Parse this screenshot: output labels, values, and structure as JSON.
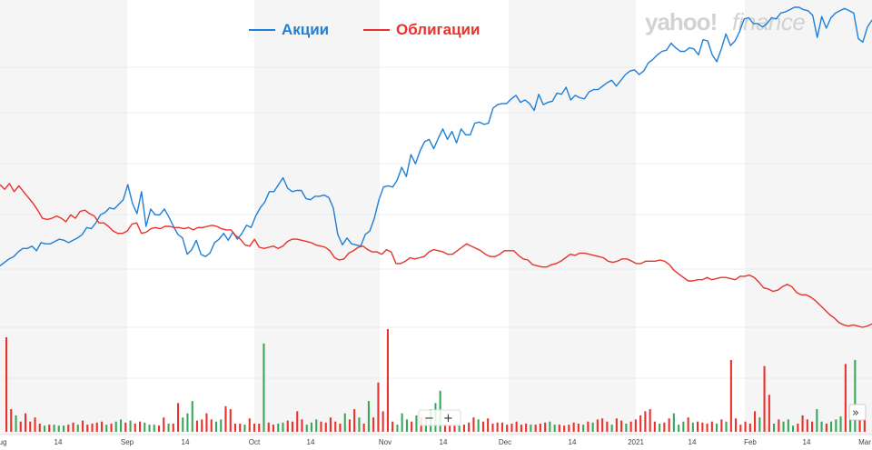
{
  "chart_data": {
    "type": "line",
    "legend": [
      {
        "label": "Акции",
        "color": "#1f7fd6"
      },
      {
        "label": "Облигации",
        "color": "#e8322b"
      }
    ],
    "watermark": {
      "brand": "yahoo!",
      "product": "finance"
    },
    "x_ticks": [
      "ug",
      "14",
      "Sep",
      "14",
      "Oct",
      "14",
      "Nov",
      "14",
      "Dec",
      "14",
      "2021",
      "14",
      "Feb",
      "14",
      "Mar"
    ],
    "series": [
      {
        "name": "Акции",
        "color": "#1f7fd6",
        "values": [
          30,
          33,
          36,
          38,
          42,
          45,
          45,
          47,
          43,
          50,
          49,
          49,
          51,
          53,
          52,
          50,
          52,
          54,
          57,
          63,
          62,
          67,
          74,
          76,
          80,
          79,
          83,
          87,
          100,
          84,
          75,
          94,
          64,
          79,
          74,
          74,
          79,
          72,
          64,
          57,
          54,
          40,
          44,
          52,
          40,
          38,
          41,
          50,
          53,
          58,
          52,
          59,
          53,
          58,
          65,
          63,
          73,
          80,
          85,
          94,
          94,
          100,
          106,
          97,
          94,
          95,
          95,
          88,
          87,
          90,
          90,
          91,
          89,
          80,
          57,
          48,
          54,
          49,
          48,
          47,
          57,
          60,
          71,
          87,
          98,
          99,
          98,
          104,
          115,
          107,
          126,
          118,
          129,
          137,
          139,
          131,
          140,
          148,
          139,
          146,
          136,
          148,
          143,
          143,
          153,
          154,
          152,
          153,
          166,
          169,
          170,
          170,
          174,
          177,
          171,
          173,
          170,
          164,
          178,
          169,
          171,
          172,
          179,
          178,
          184,
          173,
          177,
          175,
          174,
          180,
          182,
          182,
          185,
          188,
          190,
          185,
          190,
          195,
          198,
          199,
          195,
          198,
          205,
          208,
          212,
          215,
          216,
          222,
          218,
          215,
          215,
          218,
          217,
          212,
          225,
          224,
          212,
          206,
          217,
          230,
          220,
          224,
          232,
          243,
          244,
          239,
          239,
          236,
          239,
          244,
          243,
          248,
          249,
          251,
          253,
          253,
          251,
          250,
          246,
          227,
          245,
          235,
          244,
          248,
          250,
          252,
          250,
          248,
          226,
          223,
          236,
          242
        ]
      },
      {
        "name": "Облигации",
        "color": "#e8322b",
        "values": [
          100,
          96,
          101,
          94,
          99,
          94,
          89,
          84,
          78,
          71,
          70,
          71,
          73,
          71,
          68,
          74,
          71,
          77,
          78,
          75,
          73,
          67,
          67,
          64,
          60,
          58,
          58,
          60,
          66,
          67,
          58,
          59,
          62,
          63,
          62,
          64,
          64,
          63,
          63,
          62,
          63,
          61,
          63,
          63,
          64,
          65,
          64,
          62,
          61,
          61,
          56,
          53,
          48,
          47,
          53,
          46,
          45,
          46,
          47,
          45,
          47,
          51,
          53,
          53,
          52,
          51,
          50,
          48,
          47,
          46,
          43,
          37,
          35,
          36,
          41,
          43,
          46,
          47,
          44,
          42,
          42,
          40,
          44,
          42,
          32,
          32,
          34,
          37,
          36,
          37,
          38,
          42,
          44,
          43,
          42,
          40,
          40,
          43,
          46,
          49,
          47,
          45,
          43,
          40,
          38,
          38,
          40,
          43,
          43,
          43,
          39,
          36,
          35,
          31,
          30,
          29,
          29,
          31,
          32,
          34,
          37,
          40,
          39,
          41,
          41,
          40,
          39,
          38,
          37,
          34,
          33,
          34,
          36,
          36,
          34,
          32,
          32,
          34,
          34,
          34,
          35,
          34,
          31,
          26,
          23,
          20,
          17,
          17,
          18,
          18,
          20,
          18,
          19,
          20,
          20,
          19,
          18,
          21,
          21,
          22,
          20,
          16,
          11,
          10,
          8,
          9,
          12,
          14,
          12,
          7,
          5,
          5,
          3,
          0,
          -4,
          -8,
          -12,
          -15,
          -19,
          -21,
          -22,
          -21,
          -22,
          -23,
          -22,
          -20
        ]
      }
    ],
    "volume": [
      {
        "value": 0.92,
        "color": "#e8322b"
      },
      {
        "value": 0.22,
        "color": "#e8322b"
      },
      {
        "value": 0.16,
        "color": "#3aa65c"
      },
      {
        "value": 0.1,
        "color": "#e8322b"
      },
      {
        "value": 0.18,
        "color": "#e8322b"
      },
      {
        "value": 0.1,
        "color": "#e8322b"
      },
      {
        "value": 0.14,
        "color": "#e8322b"
      },
      {
        "value": 0.08,
        "color": "#e8322b"
      },
      {
        "value": 0.06,
        "color": "#3aa65c"
      },
      {
        "value": 0.07,
        "color": "#e8322b"
      },
      {
        "value": 0.07,
        "color": "#3aa65c"
      },
      {
        "value": 0.06,
        "color": "#3aa65c"
      },
      {
        "value": 0.06,
        "color": "#3aa65c"
      },
      {
        "value": 0.07,
        "color": "#e8322b"
      },
      {
        "value": 0.09,
        "color": "#e8322b"
      },
      {
        "value": 0.07,
        "color": "#3aa65c"
      },
      {
        "value": 0.11,
        "color": "#e8322b"
      },
      {
        "value": 0.07,
        "color": "#e8322b"
      },
      {
        "value": 0.08,
        "color": "#e8322b"
      },
      {
        "value": 0.09,
        "color": "#e8322b"
      },
      {
        "value": 0.1,
        "color": "#e8322b"
      },
      {
        "value": 0.07,
        "color": "#3aa65c"
      },
      {
        "value": 0.08,
        "color": "#e8322b"
      },
      {
        "value": 0.1,
        "color": "#3aa65c"
      },
      {
        "value": 0.12,
        "color": "#3aa65c"
      },
      {
        "value": 0.09,
        "color": "#e8322b"
      },
      {
        "value": 0.11,
        "color": "#3aa65c"
      },
      {
        "value": 0.08,
        "color": "#e8322b"
      },
      {
        "value": 0.1,
        "color": "#e8322b"
      },
      {
        "value": 0.09,
        "color": "#3aa65c"
      },
      {
        "value": 0.07,
        "color": "#3aa65c"
      },
      {
        "value": 0.07,
        "color": "#3aa65c"
      },
      {
        "value": 0.06,
        "color": "#e8322b"
      },
      {
        "value": 0.14,
        "color": "#e8322b"
      },
      {
        "value": 0.08,
        "color": "#3aa65c"
      },
      {
        "value": 0.08,
        "color": "#e8322b"
      },
      {
        "value": 0.28,
        "color": "#e8322b"
      },
      {
        "value": 0.14,
        "color": "#3aa65c"
      },
      {
        "value": 0.18,
        "color": "#3aa65c"
      },
      {
        "value": 0.3,
        "color": "#3aa65c"
      },
      {
        "value": 0.11,
        "color": "#e8322b"
      },
      {
        "value": 0.12,
        "color": "#e8322b"
      },
      {
        "value": 0.18,
        "color": "#e8322b"
      },
      {
        "value": 0.12,
        "color": "#e8322b"
      },
      {
        "value": 0.1,
        "color": "#3aa65c"
      },
      {
        "value": 0.12,
        "color": "#3aa65c"
      },
      {
        "value": 0.25,
        "color": "#e8322b"
      },
      {
        "value": 0.22,
        "color": "#e8322b"
      },
      {
        "value": 0.08,
        "color": "#e8322b"
      },
      {
        "value": 0.08,
        "color": "#e8322b"
      },
      {
        "value": 0.07,
        "color": "#3aa65c"
      },
      {
        "value": 0.13,
        "color": "#e8322b"
      },
      {
        "value": 0.08,
        "color": "#e8322b"
      },
      {
        "value": 0.08,
        "color": "#e8322b"
      },
      {
        "value": 0.86,
        "color": "#3aa65c"
      },
      {
        "value": 0.09,
        "color": "#e8322b"
      },
      {
        "value": 0.07,
        "color": "#e8322b"
      },
      {
        "value": 0.08,
        "color": "#3aa65c"
      },
      {
        "value": 0.09,
        "color": "#3aa65c"
      },
      {
        "value": 0.11,
        "color": "#e8322b"
      },
      {
        "value": 0.1,
        "color": "#e8322b"
      },
      {
        "value": 0.2,
        "color": "#e8322b"
      },
      {
        "value": 0.12,
        "color": "#e8322b"
      },
      {
        "value": 0.07,
        "color": "#3aa65c"
      },
      {
        "value": 0.09,
        "color": "#3aa65c"
      },
      {
        "value": 0.12,
        "color": "#3aa65c"
      },
      {
        "value": 0.1,
        "color": "#e8322b"
      },
      {
        "value": 0.09,
        "color": "#e8322b"
      },
      {
        "value": 0.14,
        "color": "#e8322b"
      },
      {
        "value": 0.1,
        "color": "#e8322b"
      },
      {
        "value": 0.08,
        "color": "#e8322b"
      },
      {
        "value": 0.18,
        "color": "#3aa65c"
      },
      {
        "value": 0.12,
        "color": "#e8322b"
      },
      {
        "value": 0.22,
        "color": "#e8322b"
      },
      {
        "value": 0.14,
        "color": "#3aa65c"
      },
      {
        "value": 0.08,
        "color": "#e8322b"
      },
      {
        "value": 0.3,
        "color": "#3aa65c"
      },
      {
        "value": 0.14,
        "color": "#e8322b"
      },
      {
        "value": 0.48,
        "color": "#e8322b"
      },
      {
        "value": 0.2,
        "color": "#e8322b"
      },
      {
        "value": 1.0,
        "color": "#e8322b"
      },
      {
        "value": 0.1,
        "color": "#e8322b"
      },
      {
        "value": 0.07,
        "color": "#3aa65c"
      },
      {
        "value": 0.18,
        "color": "#3aa65c"
      },
      {
        "value": 0.12,
        "color": "#3aa65c"
      },
      {
        "value": 0.1,
        "color": "#e8322b"
      },
      {
        "value": 0.16,
        "color": "#3aa65c"
      },
      {
        "value": 0.14,
        "color": "#e8322b"
      },
      {
        "value": 0.13,
        "color": "#3aa65c"
      },
      {
        "value": 0.22,
        "color": "#3aa65c"
      },
      {
        "value": 0.28,
        "color": "#3aa65c"
      },
      {
        "value": 0.4,
        "color": "#3aa65c"
      },
      {
        "value": 0.08,
        "color": "#e8322b"
      },
      {
        "value": 0.07,
        "color": "#e8322b"
      },
      {
        "value": 0.07,
        "color": "#e8322b"
      },
      {
        "value": 0.06,
        "color": "#3aa65c"
      },
      {
        "value": 0.07,
        "color": "#e8322b"
      },
      {
        "value": 0.09,
        "color": "#e8322b"
      },
      {
        "value": 0.14,
        "color": "#e8322b"
      },
      {
        "value": 0.12,
        "color": "#3aa65c"
      },
      {
        "value": 0.1,
        "color": "#e8322b"
      },
      {
        "value": 0.13,
        "color": "#e8322b"
      },
      {
        "value": 0.08,
        "color": "#e8322b"
      },
      {
        "value": 0.09,
        "color": "#e8322b"
      },
      {
        "value": 0.09,
        "color": "#e8322b"
      },
      {
        "value": 0.07,
        "color": "#e8322b"
      },
      {
        "value": 0.08,
        "color": "#e8322b"
      },
      {
        "value": 0.1,
        "color": "#e8322b"
      },
      {
        "value": 0.07,
        "color": "#e8322b"
      },
      {
        "value": 0.08,
        "color": "#e8322b"
      },
      {
        "value": 0.07,
        "color": "#3aa65c"
      },
      {
        "value": 0.07,
        "color": "#e8322b"
      },
      {
        "value": 0.08,
        "color": "#e8322b"
      },
      {
        "value": 0.09,
        "color": "#e8322b"
      },
      {
        "value": 0.1,
        "color": "#3aa65c"
      },
      {
        "value": 0.07,
        "color": "#3aa65c"
      },
      {
        "value": 0.07,
        "color": "#e8322b"
      },
      {
        "value": 0.06,
        "color": "#e8322b"
      },
      {
        "value": 0.07,
        "color": "#e8322b"
      },
      {
        "value": 0.09,
        "color": "#e8322b"
      },
      {
        "value": 0.08,
        "color": "#e8322b"
      },
      {
        "value": 0.07,
        "color": "#3aa65c"
      },
      {
        "value": 0.1,
        "color": "#e8322b"
      },
      {
        "value": 0.09,
        "color": "#3aa65c"
      },
      {
        "value": 0.12,
        "color": "#e8322b"
      },
      {
        "value": 0.13,
        "color": "#e8322b"
      },
      {
        "value": 0.1,
        "color": "#e8322b"
      },
      {
        "value": 0.07,
        "color": "#3aa65c"
      },
      {
        "value": 0.13,
        "color": "#e8322b"
      },
      {
        "value": 0.11,
        "color": "#e8322b"
      },
      {
        "value": 0.08,
        "color": "#3aa65c"
      },
      {
        "value": 0.1,
        "color": "#e8322b"
      },
      {
        "value": 0.12,
        "color": "#e8322b"
      },
      {
        "value": 0.16,
        "color": "#e8322b"
      },
      {
        "value": 0.2,
        "color": "#e8322b"
      },
      {
        "value": 0.22,
        "color": "#e8322b"
      },
      {
        "value": 0.1,
        "color": "#e8322b"
      },
      {
        "value": 0.08,
        "color": "#3aa65c"
      },
      {
        "value": 0.09,
        "color": "#e8322b"
      },
      {
        "value": 0.13,
        "color": "#e8322b"
      },
      {
        "value": 0.18,
        "color": "#3aa65c"
      },
      {
        "value": 0.07,
        "color": "#3aa65c"
      },
      {
        "value": 0.1,
        "color": "#3aa65c"
      },
      {
        "value": 0.14,
        "color": "#e8322b"
      },
      {
        "value": 0.09,
        "color": "#3aa65c"
      },
      {
        "value": 0.1,
        "color": "#e8322b"
      },
      {
        "value": 0.09,
        "color": "#e8322b"
      },
      {
        "value": 0.08,
        "color": "#e8322b"
      },
      {
        "value": 0.1,
        "color": "#e8322b"
      },
      {
        "value": 0.08,
        "color": "#3aa65c"
      },
      {
        "value": 0.12,
        "color": "#e8322b"
      },
      {
        "value": 0.1,
        "color": "#3aa65c"
      },
      {
        "value": 0.7,
        "color": "#e8322b"
      },
      {
        "value": 0.13,
        "color": "#e8322b"
      },
      {
        "value": 0.07,
        "color": "#e8322b"
      },
      {
        "value": 0.1,
        "color": "#e8322b"
      },
      {
        "value": 0.08,
        "color": "#e8322b"
      },
      {
        "value": 0.2,
        "color": "#e8322b"
      },
      {
        "value": 0.14,
        "color": "#3aa65c"
      },
      {
        "value": 0.64,
        "color": "#e8322b"
      },
      {
        "value": 0.36,
        "color": "#e8322b"
      },
      {
        "value": 0.08,
        "color": "#3aa65c"
      },
      {
        "value": 0.12,
        "color": "#e8322b"
      },
      {
        "value": 0.1,
        "color": "#3aa65c"
      },
      {
        "value": 0.12,
        "color": "#3aa65c"
      },
      {
        "value": 0.06,
        "color": "#3aa65c"
      },
      {
        "value": 0.08,
        "color": "#e8322b"
      },
      {
        "value": 0.16,
        "color": "#e8322b"
      },
      {
        "value": 0.12,
        "color": "#e8322b"
      },
      {
        "value": 0.1,
        "color": "#e8322b"
      },
      {
        "value": 0.22,
        "color": "#3aa65c"
      },
      {
        "value": 0.1,
        "color": "#3aa65c"
      },
      {
        "value": 0.08,
        "color": "#e8322b"
      },
      {
        "value": 0.1,
        "color": "#3aa65c"
      },
      {
        "value": 0.12,
        "color": "#3aa65c"
      },
      {
        "value": 0.15,
        "color": "#3aa65c"
      },
      {
        "value": 0.66,
        "color": "#e8322b"
      },
      {
        "value": 0.14,
        "color": "#3aa65c"
      },
      {
        "value": 0.7,
        "color": "#3aa65c"
      },
      {
        "value": 0.2,
        "color": "#e8322b"
      },
      {
        "value": 0.12,
        "color": "#e8322b"
      }
    ],
    "zoom_controls": {
      "minus": "−",
      "plus": "+",
      "expand": "»"
    }
  }
}
